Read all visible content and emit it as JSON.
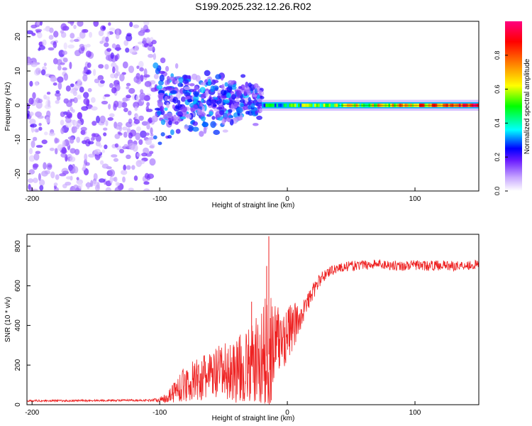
{
  "title": "S199.2025.232.12.26.R02",
  "chart_data": [
    {
      "type": "heatmap",
      "panel": "top",
      "xlabel": "Height of straight line (km)",
      "ylabel": "Frequency (Hz)",
      "xlim": [
        -204,
        150
      ],
      "ylim": [
        -25,
        24.5
      ],
      "xticks": [
        -200,
        -100,
        0,
        100
      ],
      "yticks": [
        -20,
        -10,
        0,
        10,
        20
      ],
      "colorbar": {
        "label": "Normalized spectral amplitude",
        "range": [
          0,
          1
        ],
        "ticks": [
          0.0,
          0.2,
          0.4,
          0.6,
          0.8
        ],
        "colormap": [
          "#ffffff",
          "#9c5cff",
          "#3f00ff",
          "#0000ff",
          "#00ffff",
          "#00ff00",
          "#ffff00",
          "#ff8000",
          "#ff0000",
          "#ff0080"
        ]
      },
      "regions": [
        {
          "x_range": [
            -204,
            -104
          ],
          "freq_range": [
            -25,
            24.5
          ],
          "amplitude": [
            0.02,
            0.15
          ],
          "description": "scattered noise"
        },
        {
          "x_range": [
            -104,
            -20
          ],
          "freq_range": [
            -12,
            12
          ],
          "amplitude": [
            0.05,
            0.3
          ],
          "description": "wandering signal"
        },
        {
          "x_range": [
            -20,
            150
          ],
          "freq_range": [
            -1,
            1
          ],
          "amplitude": [
            0.3,
            1.0
          ],
          "description": "stable tone near 0 Hz"
        }
      ]
    },
    {
      "type": "line",
      "panel": "bottom",
      "xlabel": "Height of straight line (km)",
      "ylabel": "SNR (10 * v/v)",
      "xlim": [
        -204,
        150
      ],
      "ylim": [
        0,
        860
      ],
      "xticks": [
        -200,
        -100,
        0,
        100
      ],
      "yticks": [
        0,
        200,
        400,
        600,
        800
      ],
      "series": [
        {
          "name": "SNR",
          "color": "#ee2222",
          "x": [
            -204,
            -190,
            -170,
            -150,
            -130,
            -110,
            -100,
            -95,
            -90,
            -85,
            -80,
            -70,
            -60,
            -50,
            -40,
            -30,
            -25,
            -20,
            -15,
            -13,
            -10,
            -5,
            0,
            5,
            10,
            15,
            20,
            25,
            30,
            35,
            40,
            50,
            60,
            70,
            80,
            90,
            100,
            110,
            120,
            130,
            140,
            150
          ],
          "values": [
            20,
            20,
            20,
            21,
            22,
            22,
            25,
            35,
            60,
            85,
            105,
            125,
            145,
            160,
            175,
            195,
            210,
            230,
            250,
            265,
            300,
            330,
            360,
            395,
            440,
            505,
            570,
            625,
            660,
            680,
            690,
            700,
            705,
            710,
            705,
            700,
            705,
            700,
            705,
            700,
            705,
            705
          ],
          "noise_amplitude": [
            5,
            5,
            5,
            5,
            5,
            5,
            10,
            30,
            50,
            70,
            90,
            110,
            130,
            150,
            170,
            190,
            230,
            280,
            320,
            340,
            220,
            180,
            150,
            120,
            70,
            50,
            40,
            35,
            30,
            25,
            25,
            25,
            25,
            25,
            25,
            25,
            25,
            25,
            25,
            25,
            25,
            25
          ],
          "spikes": [
            {
              "x": -14.5,
              "y": 850
            },
            {
              "x": -16.2,
              "y": 700
            },
            {
              "x": -28,
              "y": 520
            }
          ]
        }
      ]
    }
  ]
}
